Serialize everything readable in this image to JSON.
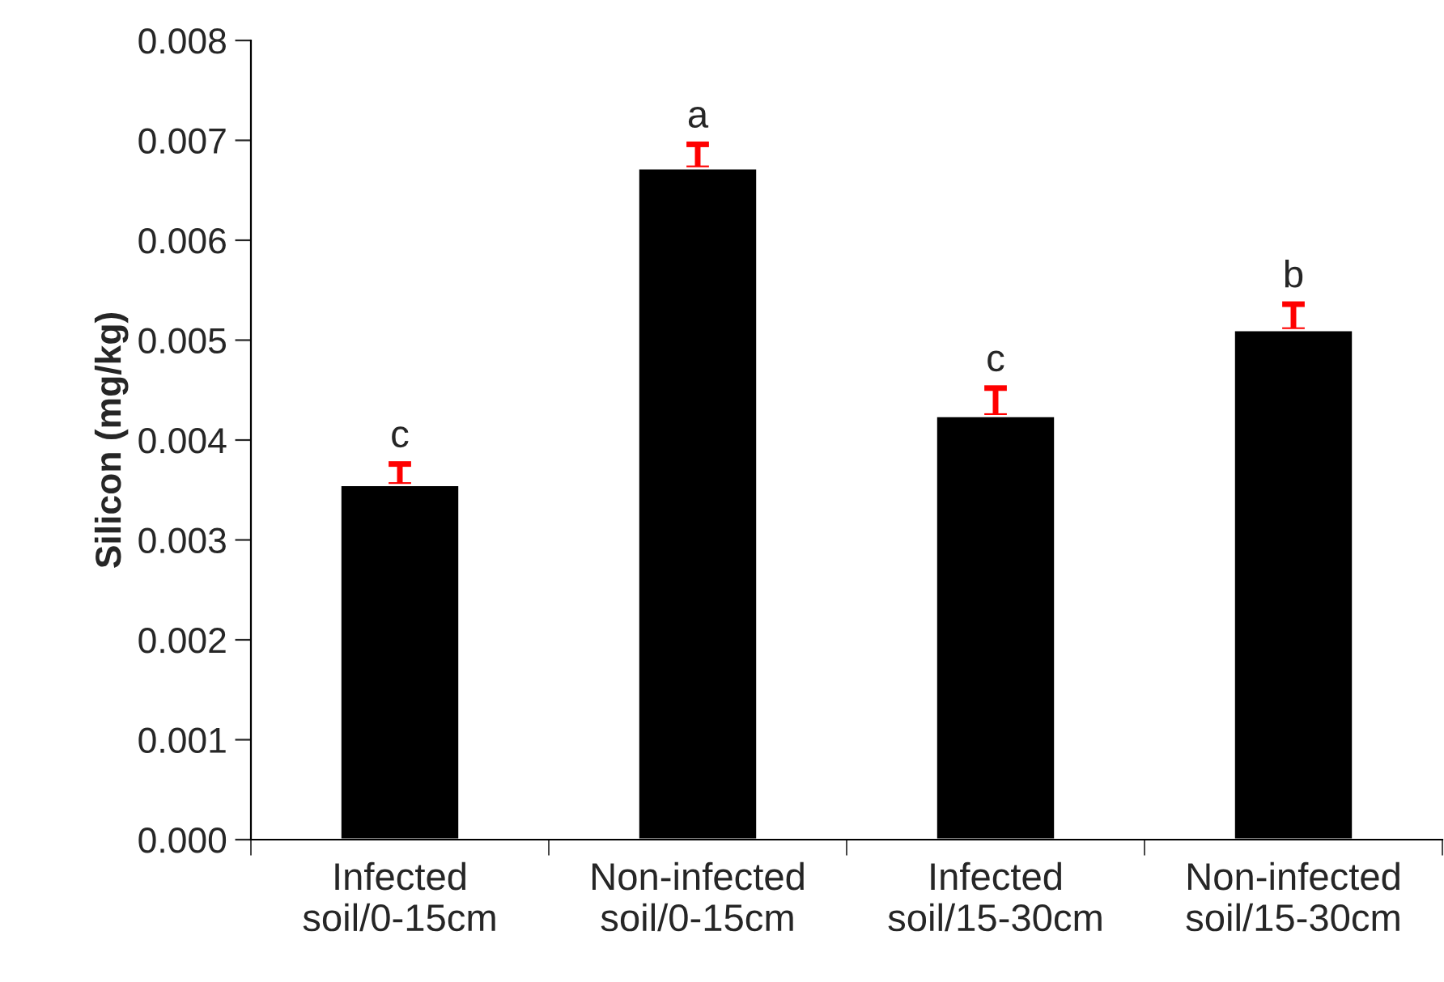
{
  "chart_data": {
    "type": "bar",
    "categories": [
      "Infected\nsoil/0-15cm",
      "Non-infected\nsoil/0-15cm",
      "Infected\nsoil/15-30cm",
      "Non-infected\nsoil/15-30cm"
    ],
    "values": [
      0.00355,
      0.00672,
      0.00424,
      0.0051
    ],
    "color": "#000000",
    "errors": [
      [
        0.00355,
        0.00376
      ],
      [
        0.00672,
        0.00696
      ],
      [
        0.00424,
        0.00452
      ],
      [
        0.0051,
        0.00536
      ]
    ],
    "ylabel": "Silicon (mg/kg)",
    "ylim": [
      0,
      0.008
    ],
    "yticks": [
      {
        "value": 0,
        "label": "0.000"
      },
      {
        "value": 0.001,
        "label": "0.001"
      },
      {
        "value": 0.002,
        "label": "0.002"
      },
      {
        "value": 0.003,
        "label": "0.003"
      },
      {
        "value": 0.004,
        "label": "0.004"
      },
      {
        "value": 0.005,
        "label": "0.005"
      },
      {
        "value": 0.006,
        "label": "0.006"
      },
      {
        "value": 0.007,
        "label": "0.007"
      },
      {
        "value": 0.008,
        "label": "0.008"
      }
    ],
    "annotations": [
      "c",
      "a",
      "c",
      "b"
    ],
    "grid": false,
    "legend": false
  }
}
